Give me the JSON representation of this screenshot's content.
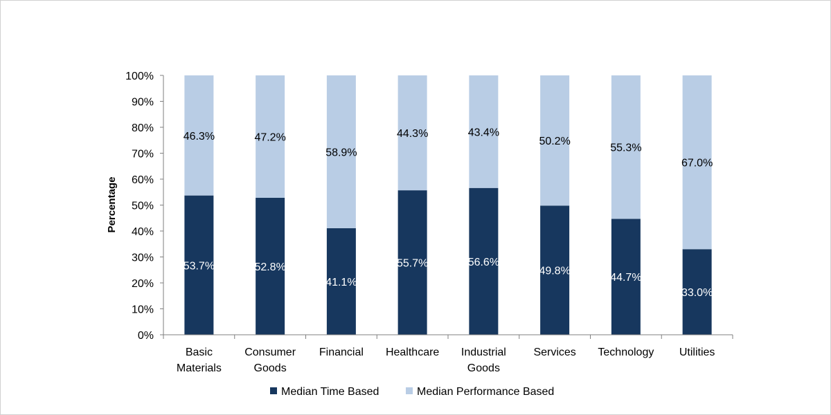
{
  "chart_data": {
    "type": "bar",
    "stacked": true,
    "ylabel": "Percentage",
    "ylim": [
      0,
      100
    ],
    "yticks": [
      "0%",
      "10%",
      "20%",
      "30%",
      "40%",
      "50%",
      "60%",
      "70%",
      "80%",
      "90%",
      "100%"
    ],
    "categories": [
      [
        "Basic",
        "Materials"
      ],
      [
        "Consumer",
        "Goods"
      ],
      [
        "Financial"
      ],
      [
        "Healthcare"
      ],
      [
        "Industrial",
        "Goods"
      ],
      [
        "Services"
      ],
      [
        "Technology"
      ],
      [
        "Utilities"
      ]
    ],
    "series": [
      {
        "name": "Median Time Based",
        "color": "#17375e",
        "label_color": "#ffffff",
        "values": [
          53.7,
          52.8,
          41.1,
          55.7,
          56.6,
          49.8,
          44.7,
          33.0
        ],
        "labels": [
          "53.7%",
          "52.8%",
          "41.1%",
          "55.7%",
          "56.6%",
          "49.8%",
          "44.7%",
          "33.0%"
        ]
      },
      {
        "name": "Median Performance Based",
        "color": "#b9cde5",
        "label_color": "#000000",
        "values": [
          46.3,
          47.2,
          58.9,
          44.3,
          43.4,
          50.2,
          55.3,
          67.0
        ],
        "labels": [
          "46.3%",
          "47.2%",
          "58.9%",
          "44.3%",
          "43.4%",
          "50.2%",
          "55.3%",
          "67.0%"
        ]
      }
    ],
    "legend_position": "bottom",
    "grid": false
  }
}
